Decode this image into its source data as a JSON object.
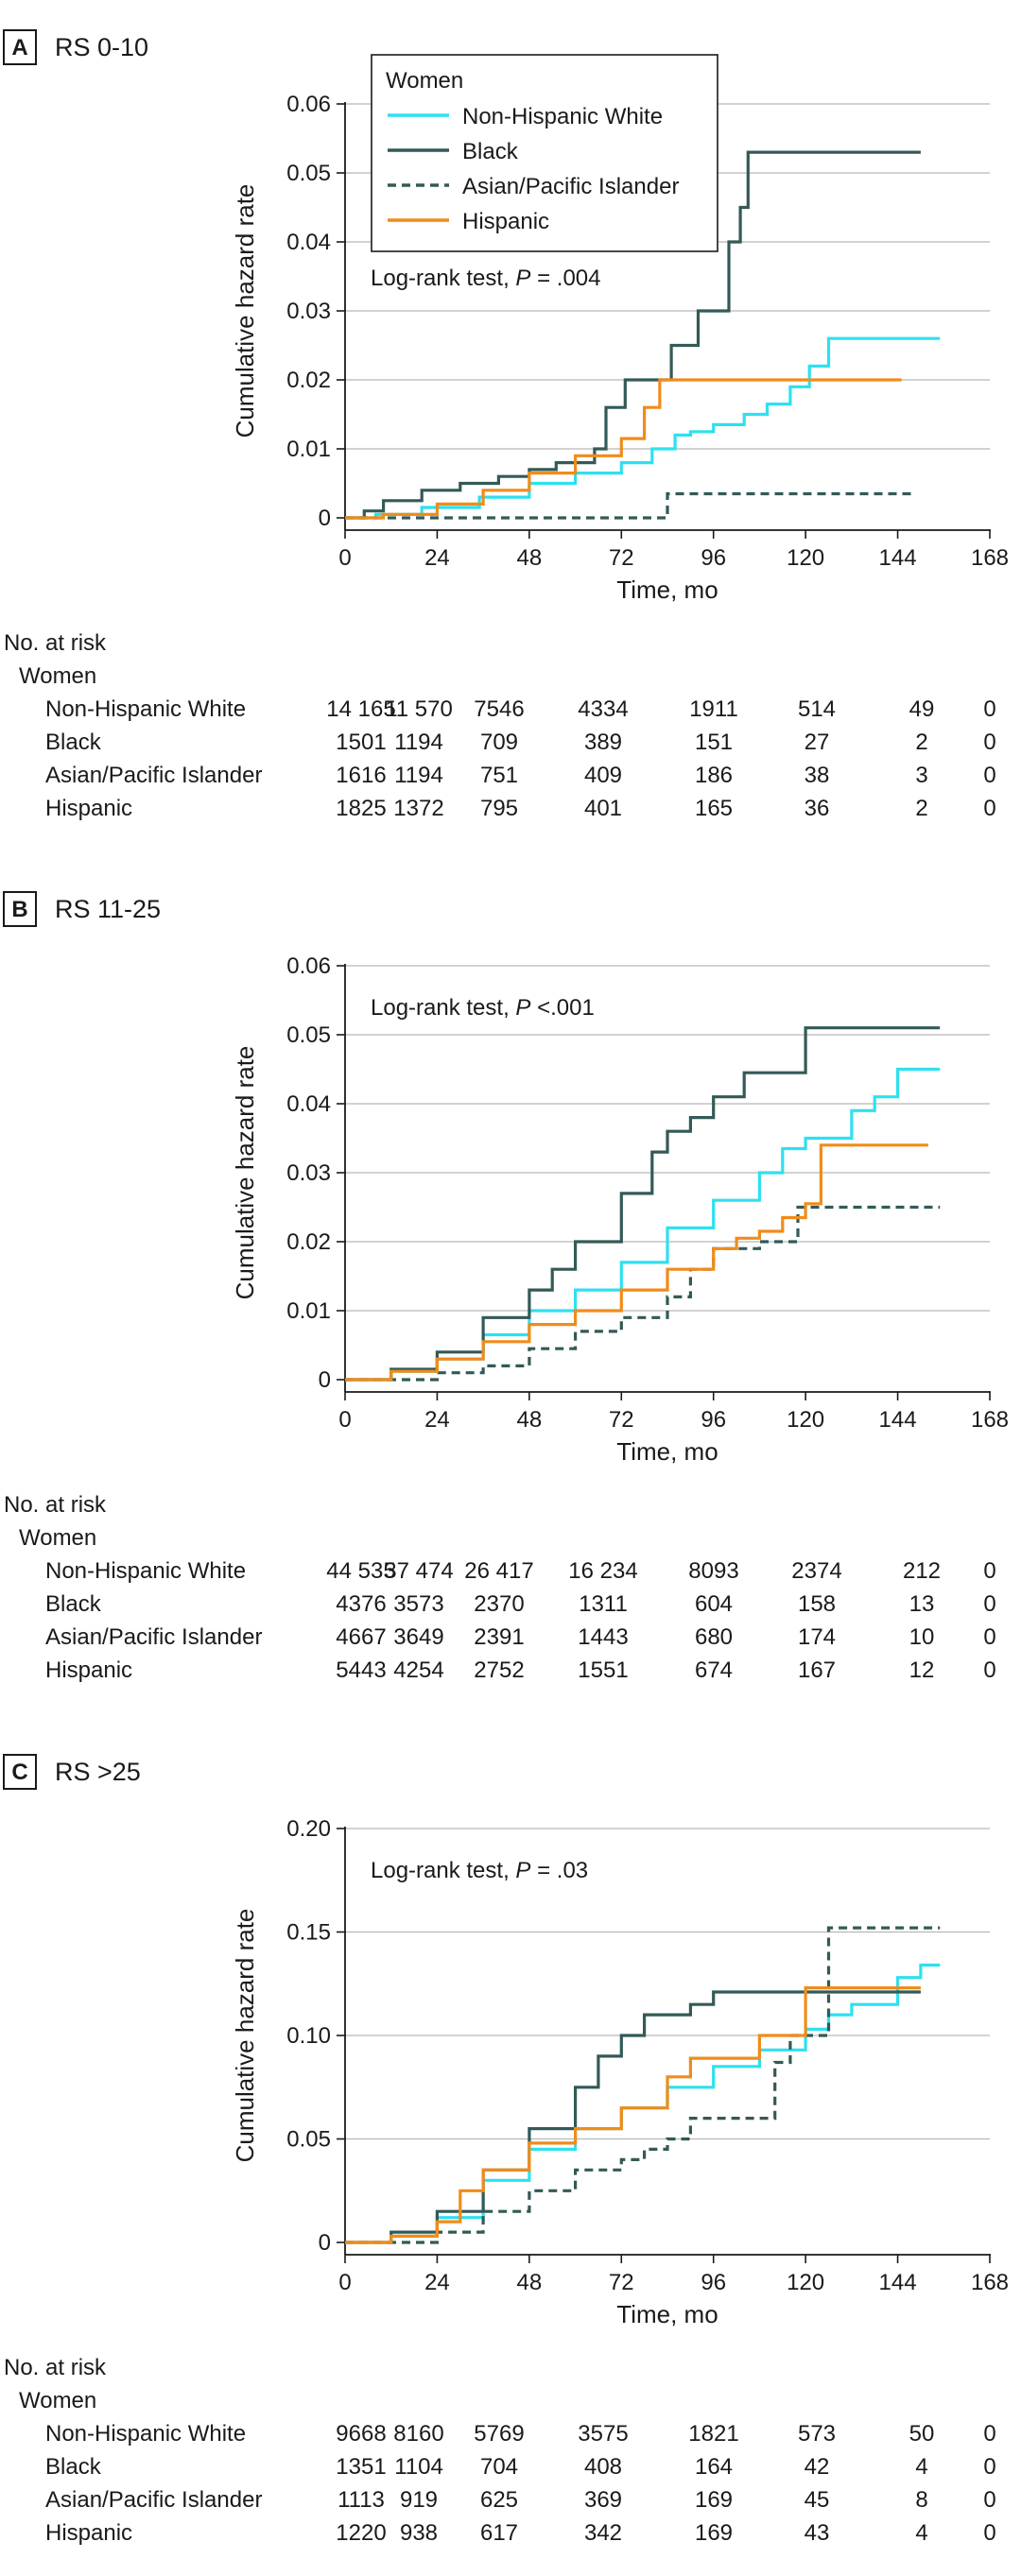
{
  "series_styles": {
    "Non-Hispanic White": {
      "color": "#2ee0f0",
      "dash": false
    },
    "Black": {
      "color": "#335a57",
      "dash": false
    },
    "Asian/Pacific Islander": {
      "color": "#335a57",
      "dash": true
    },
    "Hispanic": {
      "color": "#f08c1a",
      "dash": false
    }
  },
  "chart_data": [
    {
      "type": "line",
      "panel_label": "A",
      "title": "RS 0-10",
      "xlabel": "Time, mo",
      "ylabel": "Cumulative hazard rate",
      "xlim": [
        0,
        168
      ],
      "ylim": [
        0,
        0.06
      ],
      "xticks": [
        "0",
        "24",
        "48",
        "72",
        "96",
        "120",
        "144",
        "168"
      ],
      "yticks": [
        "0",
        "0.01",
        "0.02",
        "0.03",
        "0.04",
        "0.05",
        "0.06"
      ],
      "grid": true,
      "annotation_prefix": "Log-rank test, ",
      "annotation_p": "P",
      "annotation_value": " = .004",
      "legend": {
        "title": "Women",
        "placement": "top",
        "entries": [
          "Non-Hispanic White",
          "Black",
          "Asian/Pacific Islander",
          "Hispanic"
        ]
      },
      "series": [
        {
          "name": "Non-Hispanic White",
          "x": [
            0,
            8,
            20,
            35,
            48,
            60,
            72,
            80,
            86,
            90,
            96,
            104,
            110,
            116,
            121,
            126,
            140,
            155
          ],
          "y": [
            0,
            0.0005,
            0.0015,
            0.003,
            0.005,
            0.0065,
            0.008,
            0.01,
            0.012,
            0.0125,
            0.0135,
            0.015,
            0.0165,
            0.019,
            0.022,
            0.026,
            0.026,
            0.026
          ]
        },
        {
          "name": "Black",
          "x": [
            0,
            5,
            10,
            20,
            30,
            40,
            48,
            55,
            65,
            68,
            73,
            85,
            92,
            100,
            103,
            105,
            130,
            150
          ],
          "y": [
            0,
            0.001,
            0.0025,
            0.004,
            0.005,
            0.006,
            0.007,
            0.008,
            0.01,
            0.016,
            0.02,
            0.025,
            0.03,
            0.04,
            0.045,
            0.053,
            0.053,
            0.053
          ]
        },
        {
          "name": "Asian/Pacific Islander",
          "x": [
            0,
            30,
            60,
            80,
            84,
            84,
            120,
            148
          ],
          "y": [
            0,
            0,
            0,
            0,
            0,
            0.0035,
            0.0035,
            0.0035
          ]
        },
        {
          "name": "Hispanic",
          "x": [
            0,
            10,
            24,
            36,
            48,
            60,
            66,
            72,
            78,
            82,
            84,
            100,
            120,
            145
          ],
          "y": [
            0,
            0.0005,
            0.002,
            0.004,
            0.0065,
            0.009,
            0.009,
            0.0115,
            0.016,
            0.02,
            0.02,
            0.02,
            0.02,
            0.02
          ]
        }
      ],
      "risk_table": {
        "title": "No. at risk",
        "group": "Women",
        "times": [
          0,
          24,
          48,
          72,
          96,
          120,
          144,
          168
        ],
        "rows": [
          {
            "label": "Non-Hispanic White",
            "values": [
              "14 165",
              "11 570",
              "7546",
              "4334",
              "1911",
              "514",
              "49",
              "0"
            ]
          },
          {
            "label": "Black",
            "values": [
              "1501",
              "1194",
              "709",
              "389",
              "151",
              "27",
              "2",
              "0"
            ]
          },
          {
            "label": "Asian/Pacific Islander",
            "values": [
              "1616",
              "1194",
              "751",
              "409",
              "186",
              "38",
              "3",
              "0"
            ]
          },
          {
            "label": "Hispanic",
            "values": [
              "1825",
              "1372",
              "795",
              "401",
              "165",
              "36",
              "2",
              "0"
            ]
          }
        ]
      }
    },
    {
      "type": "line",
      "panel_label": "B",
      "title": "RS 11-25",
      "xlabel": "Time, mo",
      "ylabel": "Cumulative hazard rate",
      "xlim": [
        0,
        168
      ],
      "ylim": [
        0,
        0.06
      ],
      "xticks": [
        "0",
        "24",
        "48",
        "72",
        "96",
        "120",
        "144",
        "168"
      ],
      "yticks": [
        "0",
        "0.01",
        "0.02",
        "0.03",
        "0.04",
        "0.05",
        "0.06"
      ],
      "grid": true,
      "annotation_prefix": "Log-rank test, ",
      "annotation_p": "P",
      "annotation_value": " <.001",
      "series": [
        {
          "name": "Non-Hispanic White",
          "x": [
            0,
            12,
            24,
            36,
            48,
            60,
            72,
            84,
            96,
            108,
            114,
            120,
            132,
            138,
            144,
            155
          ],
          "y": [
            0,
            0.0012,
            0.003,
            0.0065,
            0.01,
            0.013,
            0.017,
            0.022,
            0.026,
            0.03,
            0.0335,
            0.035,
            0.039,
            0.041,
            0.045,
            0.045
          ]
        },
        {
          "name": "Black",
          "x": [
            0,
            12,
            24,
            36,
            48,
            54,
            60,
            72,
            80,
            84,
            90,
            96,
            104,
            110,
            120,
            155
          ],
          "y": [
            0,
            0.0015,
            0.004,
            0.009,
            0.013,
            0.016,
            0.02,
            0.027,
            0.033,
            0.036,
            0.038,
            0.041,
            0.0445,
            0.0445,
            0.051,
            0.051
          ]
        },
        {
          "name": "Asian/Pacific Islander",
          "x": [
            0,
            24,
            36,
            48,
            60,
            72,
            84,
            90,
            96,
            108,
            112,
            118,
            155
          ],
          "y": [
            0,
            0.001,
            0.002,
            0.0045,
            0.007,
            0.009,
            0.012,
            0.016,
            0.019,
            0.02,
            0.02,
            0.025,
            0.025
          ]
        },
        {
          "name": "Hispanic",
          "x": [
            0,
            12,
            24,
            36,
            48,
            60,
            72,
            84,
            96,
            102,
            108,
            114,
            120,
            124,
            135,
            152
          ],
          "y": [
            0,
            0.0012,
            0.003,
            0.0055,
            0.008,
            0.01,
            0.013,
            0.016,
            0.019,
            0.0205,
            0.0215,
            0.0235,
            0.0255,
            0.034,
            0.034,
            0.034
          ]
        }
      ],
      "risk_table": {
        "title": "No. at risk",
        "group": "Women",
        "times": [
          0,
          24,
          48,
          72,
          96,
          120,
          144,
          168
        ],
        "rows": [
          {
            "label": "Non-Hispanic White",
            "values": [
              "44 535",
              "37 474",
              "26 417",
              "16 234",
              "8093",
              "2374",
              "212",
              "0"
            ]
          },
          {
            "label": "Black",
            "values": [
              "4376",
              "3573",
              "2370",
              "1311",
              "604",
              "158",
              "13",
              "0"
            ]
          },
          {
            "label": "Asian/Pacific Islander",
            "values": [
              "4667",
              "3649",
              "2391",
              "1443",
              "680",
              "174",
              "10",
              "0"
            ]
          },
          {
            "label": "Hispanic",
            "values": [
              "5443",
              "4254",
              "2752",
              "1551",
              "674",
              "167",
              "12",
              "0"
            ]
          }
        ]
      }
    },
    {
      "type": "line",
      "panel_label": "C",
      "title": "RS >25",
      "xlabel": "Time, mo",
      "ylabel": "Cumulative hazard rate",
      "xlim": [
        0,
        168
      ],
      "ylim": [
        0,
        0.2
      ],
      "xticks": [
        "0",
        "24",
        "48",
        "72",
        "96",
        "120",
        "144",
        "168"
      ],
      "yticks": [
        "0",
        "0.05",
        "0.10",
        "0.15",
        "0.20"
      ],
      "grid": true,
      "annotation_prefix": "Log-rank test, ",
      "annotation_p": "P",
      "annotation_value": " = .03",
      "series": [
        {
          "name": "Non-Hispanic White",
          "x": [
            0,
            12,
            24,
            36,
            48,
            60,
            72,
            84,
            96,
            108,
            120,
            126,
            132,
            144,
            150,
            155
          ],
          "y": [
            0,
            0.003,
            0.012,
            0.03,
            0.045,
            0.055,
            0.065,
            0.075,
            0.085,
            0.093,
            0.103,
            0.11,
            0.115,
            0.128,
            0.134,
            0.134
          ]
        },
        {
          "name": "Black",
          "x": [
            0,
            12,
            24,
            36,
            48,
            60,
            66,
            72,
            78,
            84,
            90,
            96,
            110,
            120,
            150
          ],
          "y": [
            0,
            0.005,
            0.015,
            0.035,
            0.055,
            0.075,
            0.09,
            0.1,
            0.11,
            0.11,
            0.115,
            0.121,
            0.121,
            0.121,
            0.121
          ]
        },
        {
          "name": "Asian/Pacific Islander",
          "x": [
            0,
            24,
            36,
            48,
            60,
            72,
            78,
            84,
            90,
            96,
            104,
            112,
            116,
            124,
            126,
            155
          ],
          "y": [
            0,
            0.005,
            0.015,
            0.025,
            0.035,
            0.04,
            0.045,
            0.05,
            0.06,
            0.06,
            0.06,
            0.087,
            0.1,
            0.1,
            0.152,
            0.152
          ]
        },
        {
          "name": "Hispanic",
          "x": [
            0,
            12,
            24,
            30,
            36,
            48,
            60,
            72,
            84,
            90,
            96,
            108,
            120,
            130,
            150
          ],
          "y": [
            0,
            0.003,
            0.01,
            0.025,
            0.035,
            0.048,
            0.055,
            0.065,
            0.08,
            0.089,
            0.089,
            0.1,
            0.123,
            0.123,
            0.123
          ]
        }
      ],
      "risk_table": {
        "title": "No. at risk",
        "group": "Women",
        "times": [
          0,
          24,
          48,
          72,
          96,
          120,
          144,
          168
        ],
        "rows": [
          {
            "label": "Non-Hispanic White",
            "values": [
              "9668",
              "8160",
              "5769",
              "3575",
              "1821",
              "573",
              "50",
              "0"
            ]
          },
          {
            "label": "Black",
            "values": [
              "1351",
              "1104",
              "704",
              "408",
              "164",
              "42",
              "4",
              "0"
            ]
          },
          {
            "label": "Asian/Pacific Islander",
            "values": [
              "1113",
              "919",
              "625",
              "369",
              "169",
              "45",
              "8",
              "0"
            ]
          },
          {
            "label": "Hispanic",
            "values": [
              "1220",
              "938",
              "617",
              "342",
              "169",
              "43",
              "4",
              "0"
            ]
          }
        ]
      }
    }
  ]
}
